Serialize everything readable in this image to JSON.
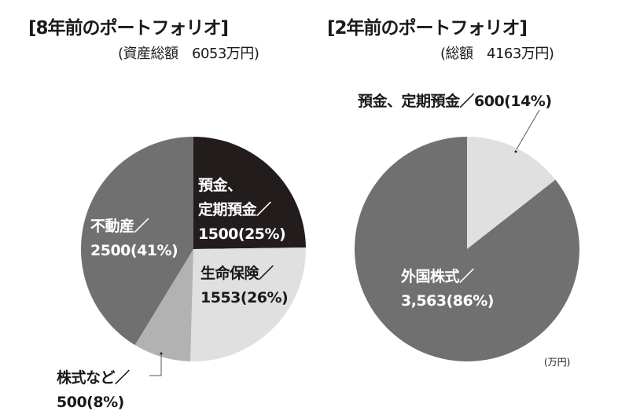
{
  "chart_data": [
    {
      "type": "pie",
      "title": "[8年前のポートフォリオ]",
      "subtitle": "(資産総額　6053万円)",
      "slices": [
        {
          "label": "預金、定期預金",
          "value": 1500,
          "percent": 25,
          "color": "#221c1c",
          "text_line1": "預金、",
          "text_line2": "定期預金／",
          "text_line3": "1500(25%)"
        },
        {
          "label": "生命保険",
          "value": 1553,
          "percent": 26,
          "color": "#e0e0e0",
          "text_line1": "生命保険／",
          "text_line2": "1553(26%)"
        },
        {
          "label": "株式など",
          "value": 500,
          "percent": 8,
          "color": "#b2b2b2",
          "text_line1": "株式など／",
          "text_line2": "500(8%)"
        },
        {
          "label": "不動産",
          "value": 2500,
          "percent": 41,
          "color": "#707070",
          "text_line1": "不動産／",
          "text_line2": "2500(41%)"
        }
      ]
    },
    {
      "type": "pie",
      "title": "[2年前のポートフォリオ]",
      "subtitle": "(総額　4163万円)",
      "unit": "(万円)",
      "slices": [
        {
          "label": "預金、定期預金",
          "value": 600,
          "percent": 14,
          "color": "#e0e0e0",
          "text_line1": "預金、定期預金／600(14%)"
        },
        {
          "label": "外国株式",
          "value": 3563,
          "percent": 86,
          "color": "#707070",
          "text_line1": "外国株式／",
          "text_line2": "3,563(86%)"
        }
      ]
    }
  ]
}
